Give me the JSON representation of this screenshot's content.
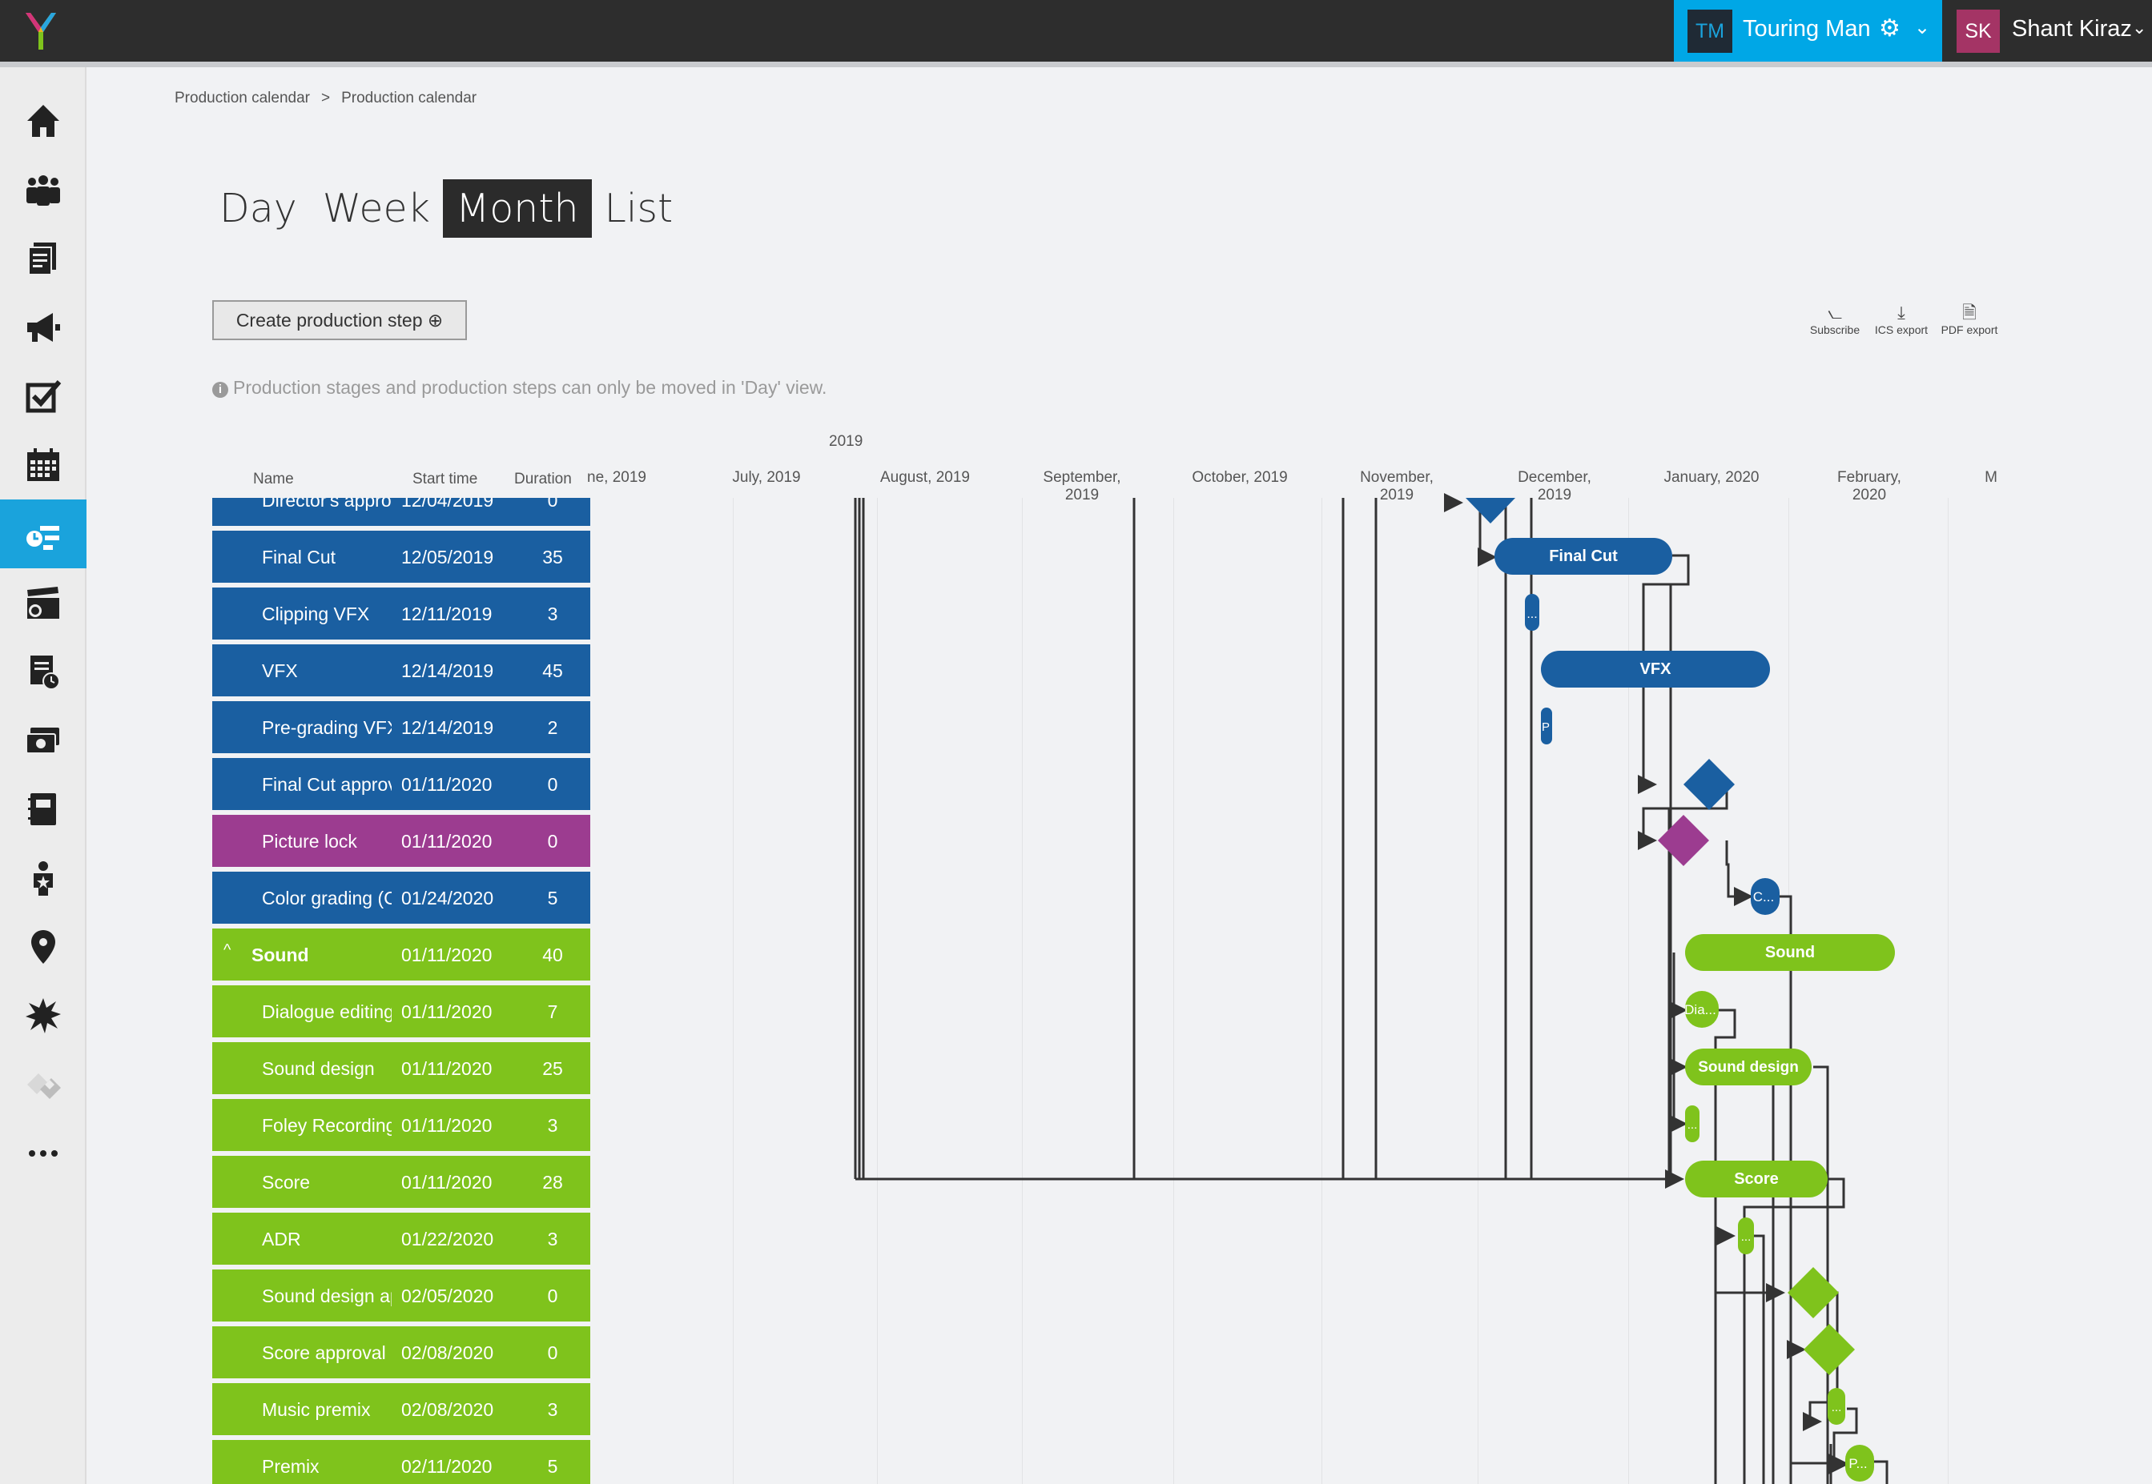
{
  "header": {
    "project_badge": "TM",
    "project_name": "Touring Man",
    "user_badge": "SK",
    "user_name": "Shant Kiraz"
  },
  "sidebar": {
    "items": [
      {
        "icon": "home-icon"
      },
      {
        "icon": "people-icon"
      },
      {
        "icon": "documents-icon"
      },
      {
        "icon": "megaphone-icon"
      },
      {
        "icon": "checkbox-icon"
      },
      {
        "icon": "calendar-icon"
      },
      {
        "icon": "gantt-icon",
        "active": true
      },
      {
        "icon": "clapperboard-icon"
      },
      {
        "icon": "script-clock-icon"
      },
      {
        "icon": "money-icon"
      },
      {
        "icon": "notebook-icon"
      },
      {
        "icon": "actor-star-icon"
      },
      {
        "icon": "location-pin-icon"
      },
      {
        "icon": "burst-icon"
      },
      {
        "icon": "puzzle-icon"
      },
      {
        "icon": "more-icon"
      }
    ],
    "accent": "#1aa3dc"
  },
  "breadcrumb": {
    "first": "Production calendar",
    "separator": ">",
    "second": "Production calendar"
  },
  "tabs": {
    "day": "Day",
    "week": "Week",
    "month": "Month",
    "list": "List",
    "active": "Month"
  },
  "toolbar": {
    "create_label": "Create production step ⊕",
    "subscribe_label": "Subscribe",
    "ics_label": "ICS export",
    "pdf_label": "PDF export"
  },
  "info_text": "Production stages and production steps can only be moved in 'Day' view.",
  "gantt": {
    "year_label": "2019",
    "columns": {
      "name": "Name",
      "start": "Start time",
      "duration": "Duration"
    },
    "months": [
      "ne, 2019",
      "July, 2019",
      "August, 2019",
      "September, 2019",
      "October, 2019",
      "November, 2019",
      "December, 2019",
      "January, 2020",
      "February, 2020",
      "M"
    ],
    "rows": [
      {
        "name": "Director's appro",
        "start": "12/04/2019",
        "duration": "0",
        "color": "blue",
        "group": false
      },
      {
        "name": "Final Cut",
        "start": "12/05/2019",
        "duration": "35",
        "color": "blue",
        "group": false
      },
      {
        "name": "Clipping VFX",
        "start": "12/11/2019",
        "duration": "3",
        "color": "blue",
        "group": false
      },
      {
        "name": "VFX",
        "start": "12/14/2019",
        "duration": "45",
        "color": "blue",
        "group": false
      },
      {
        "name": "Pre-grading VFX",
        "start": "12/14/2019",
        "duration": "2",
        "color": "blue",
        "group": false
      },
      {
        "name": "Final Cut approv",
        "start": "01/11/2020",
        "duration": "0",
        "color": "blue",
        "group": false
      },
      {
        "name": "Picture lock",
        "start": "01/11/2020",
        "duration": "0",
        "color": "purple",
        "group": false
      },
      {
        "name": "Color grading (C",
        "start": "01/24/2020",
        "duration": "5",
        "color": "blue",
        "group": false
      },
      {
        "name": "Sound",
        "start": "01/11/2020",
        "duration": "40",
        "color": "green",
        "group": true
      },
      {
        "name": "Dialogue editing",
        "start": "01/11/2020",
        "duration": "7",
        "color": "green",
        "group": false
      },
      {
        "name": "Sound design",
        "start": "01/11/2020",
        "duration": "25",
        "color": "green",
        "group": false
      },
      {
        "name": "Foley Recording",
        "start": "01/11/2020",
        "duration": "3",
        "color": "green",
        "group": false
      },
      {
        "name": "Score",
        "start": "01/11/2020",
        "duration": "28",
        "color": "green",
        "group": false
      },
      {
        "name": "ADR",
        "start": "01/22/2020",
        "duration": "3",
        "color": "green",
        "group": false
      },
      {
        "name": "Sound design ap",
        "start": "02/05/2020",
        "duration": "0",
        "color": "green",
        "group": false
      },
      {
        "name": "Score approval",
        "start": "02/08/2020",
        "duration": "0",
        "color": "green",
        "group": false
      },
      {
        "name": "Music premix",
        "start": "02/08/2020",
        "duration": "3",
        "color": "green",
        "group": false
      },
      {
        "name": "Premix",
        "start": "02/11/2020",
        "duration": "5",
        "color": "green",
        "group": false
      }
    ],
    "bars": {
      "final_cut": "Final Cut",
      "clipping": "...",
      "vfx": "VFX",
      "pregrading": "P",
      "color_grading": "C...",
      "sound": "Sound",
      "dialogue": "Dia...",
      "sound_design": "Sound design",
      "foley": "...",
      "score": "Score",
      "adr": "...",
      "music_premix": "...",
      "premix": "P..."
    },
    "colors": {
      "blue": "#1a5fa1",
      "green": "#7fc31c",
      "purple": "#9c3c90"
    }
  }
}
